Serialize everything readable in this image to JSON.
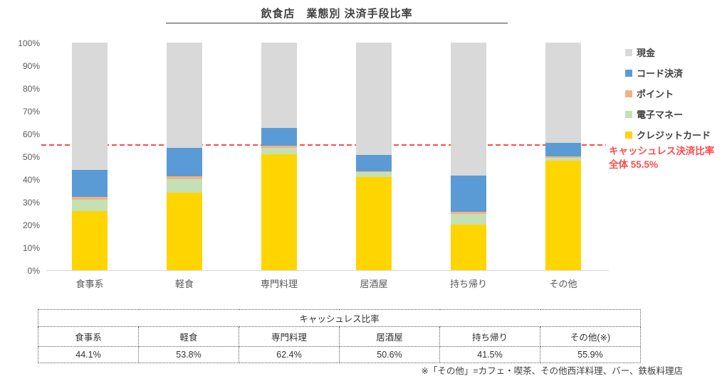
{
  "title": "飲食店　業態別 決済手段比率",
  "colors": {
    "cash": "#d9d9d9",
    "code": "#5b9bd5",
    "point": "#f4b183",
    "emoney": "#c5e0b4",
    "credit": "#ffd500",
    "reference": "#ff4b4b",
    "axis_text": "#595959"
  },
  "chart_data": {
    "type": "bar",
    "stacked": true,
    "title": "飲食店　業態別 決済手段比率",
    "categories": [
      "食事系",
      "軽食",
      "専門料理",
      "居酒屋",
      "持ち帰り",
      "その他"
    ],
    "series": [
      {
        "name": "クレジットカード",
        "color_key": "credit",
        "values": [
          26.0,
          34.0,
          51.0,
          41.0,
          20.0,
          48.0
        ]
      },
      {
        "name": "電子マネー",
        "color_key": "emoney",
        "values": [
          5.0,
          6.0,
          2.8,
          2.0,
          4.8,
          1.5
        ]
      },
      {
        "name": "ポイント",
        "color_key": "point",
        "values": [
          1.1,
          1.3,
          1.0,
          0.6,
          0.7,
          0.4
        ]
      },
      {
        "name": "コード決済",
        "color_key": "code",
        "values": [
          12.0,
          12.5,
          7.6,
          7.0,
          16.0,
          6.0
        ]
      },
      {
        "name": "現金",
        "color_key": "cash",
        "values": [
          55.9,
          46.2,
          37.6,
          49.4,
          58.5,
          44.1
        ]
      }
    ],
    "ylim": [
      0,
      100
    ],
    "yticks": [
      "100%",
      "90%",
      "80%",
      "70%",
      "60%",
      "50%",
      "40%",
      "30%",
      "20%",
      "10%",
      "0%"
    ],
    "grid": false,
    "legend_position": "right",
    "reference_line": {
      "value": 55.5,
      "label_line1": "キャッシュレス決済比率",
      "label_line2": "全体 55.5%"
    }
  },
  "legend": {
    "items": [
      {
        "label": "現金",
        "color_key": "cash"
      },
      {
        "label": "コード決済",
        "color_key": "code"
      },
      {
        "label": "ポイント",
        "color_key": "point"
      },
      {
        "label": "電子マネー",
        "color_key": "emoney"
      },
      {
        "label": "クレジットカード",
        "color_key": "credit"
      }
    ]
  },
  "table": {
    "title": "キャッシュレス比率",
    "headers": [
      "食事系",
      "軽食",
      "専門料理",
      "居酒屋",
      "持ち帰り",
      "その他(※)"
    ],
    "values": [
      "44.1%",
      "53.8%",
      "62.4%",
      "50.6%",
      "41.5%",
      "55.9%"
    ]
  },
  "footnote": "※「その他」=カフェ・喫茶、その他西洋料理、バー、鉄板料理店"
}
